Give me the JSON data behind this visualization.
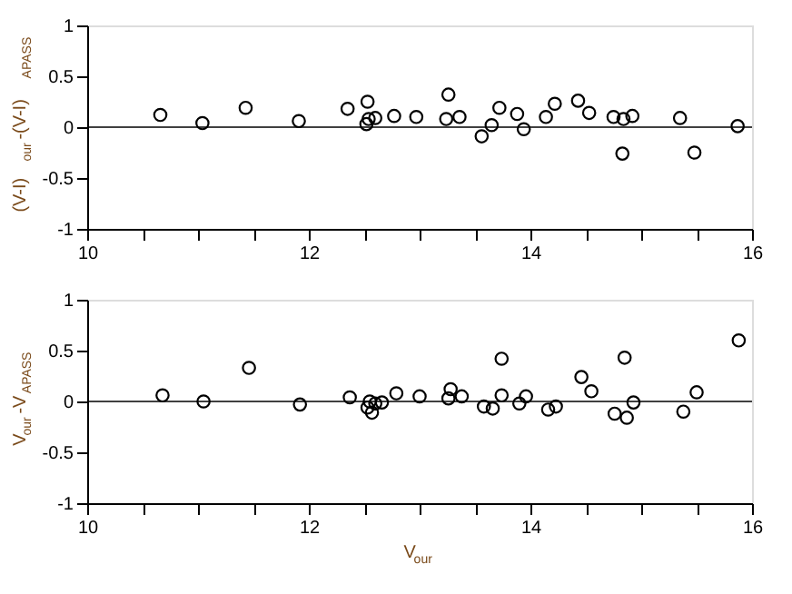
{
  "chart_data": [
    {
      "type": "scatter",
      "ylabel": "(V-I)$_{our}$-(V-I)$_{APASS}$",
      "marker": "circle",
      "grid": false,
      "legend": false,
      "xlim": [
        10,
        16
      ],
      "ylim": [
        -1,
        1
      ],
      "xticks": [
        10,
        {
          "value": 10.5,
          "label": null
        },
        {
          "value": 11,
          "label": null
        },
        {
          "value": 11.5,
          "label": null
        },
        12,
        {
          "value": 12.5,
          "label": null
        },
        {
          "value": 13,
          "label": null
        },
        {
          "value": 13.5,
          "label": null
        },
        14,
        {
          "value": 14.5,
          "label": null
        },
        {
          "value": 15,
          "label": null
        },
        {
          "value": 15.5,
          "label": null
        },
        16
      ],
      "yticks": [
        -1,
        -0.5,
        0,
        0.5,
        1
      ],
      "ref_lines": [
        {
          "axis": "y",
          "value": 0,
          "color": "#000000"
        }
      ],
      "series": [
        {
          "color": "#000000",
          "x": [
            10.66,
            11.04,
            11.43,
            11.91,
            12.35,
            12.53,
            12.52,
            12.54,
            12.6,
            12.77,
            12.97,
            13.24,
            13.26,
            13.36,
            13.56,
            13.65,
            13.72,
            13.88,
            13.94,
            14.14,
            14.22,
            14.43,
            14.53,
            14.75,
            14.83,
            14.84,
            14.92,
            15.35,
            15.48,
            15.87
          ],
          "values": [
            0.12,
            0.04,
            0.19,
            0.06,
            0.18,
            0.25,
            0.03,
            0.08,
            0.09,
            0.11,
            0.1,
            0.08,
            0.32,
            0.1,
            -0.09,
            0.02,
            0.19,
            0.13,
            -0.02,
            0.1,
            0.23,
            0.26,
            0.14,
            0.1,
            -0.26,
            0.08,
            0.11,
            0.09,
            -0.25,
            0.01
          ]
        }
      ]
    },
    {
      "type": "scatter",
      "xlabel": "V$_{our}$",
      "ylabel": "V$_{our}$-V$_{APASS}$",
      "marker": "circle",
      "grid": false,
      "legend": false,
      "xlim": [
        10,
        16
      ],
      "ylim": [
        -1,
        1
      ],
      "xticks": [
        10,
        {
          "value": 10.5,
          "label": null
        },
        {
          "value": 11,
          "label": null
        },
        {
          "value": 11.5,
          "label": null
        },
        12,
        {
          "value": 12.5,
          "label": null
        },
        {
          "value": 13,
          "label": null
        },
        {
          "value": 13.5,
          "label": null
        },
        14,
        {
          "value": 14.5,
          "label": null
        },
        {
          "value": 15,
          "label": null
        },
        {
          "value": 15.5,
          "label": null
        },
        16
      ],
      "yticks": [
        -1,
        -0.5,
        0,
        0.5,
        1
      ],
      "ref_lines": [
        {
          "axis": "y",
          "value": 0,
          "color": "#000000"
        }
      ],
      "series": [
        {
          "color": "#000000",
          "x": [
            10.68,
            11.05,
            11.46,
            11.92,
            12.37,
            12.53,
            12.55,
            12.57,
            12.6,
            12.66,
            12.79,
            13.0,
            13.26,
            13.28,
            13.38,
            13.58,
            13.66,
            13.74,
            13.74,
            13.9,
            13.96,
            14.16,
            14.23,
            14.46,
            14.55,
            14.76,
            14.85,
            14.87,
            14.93,
            15.38,
            15.5,
            15.88
          ],
          "values": [
            0.06,
            0.0,
            0.33,
            -0.03,
            0.04,
            -0.06,
            0.0,
            -0.11,
            -0.02,
            -0.01,
            0.08,
            0.05,
            0.03,
            0.12,
            0.05,
            -0.05,
            -0.07,
            0.42,
            0.06,
            -0.02,
            0.05,
            -0.08,
            -0.05,
            0.24,
            0.1,
            -0.12,
            0.43,
            -0.16,
            -0.01,
            -0.1,
            0.09,
            0.6
          ]
        }
      ]
    }
  ]
}
